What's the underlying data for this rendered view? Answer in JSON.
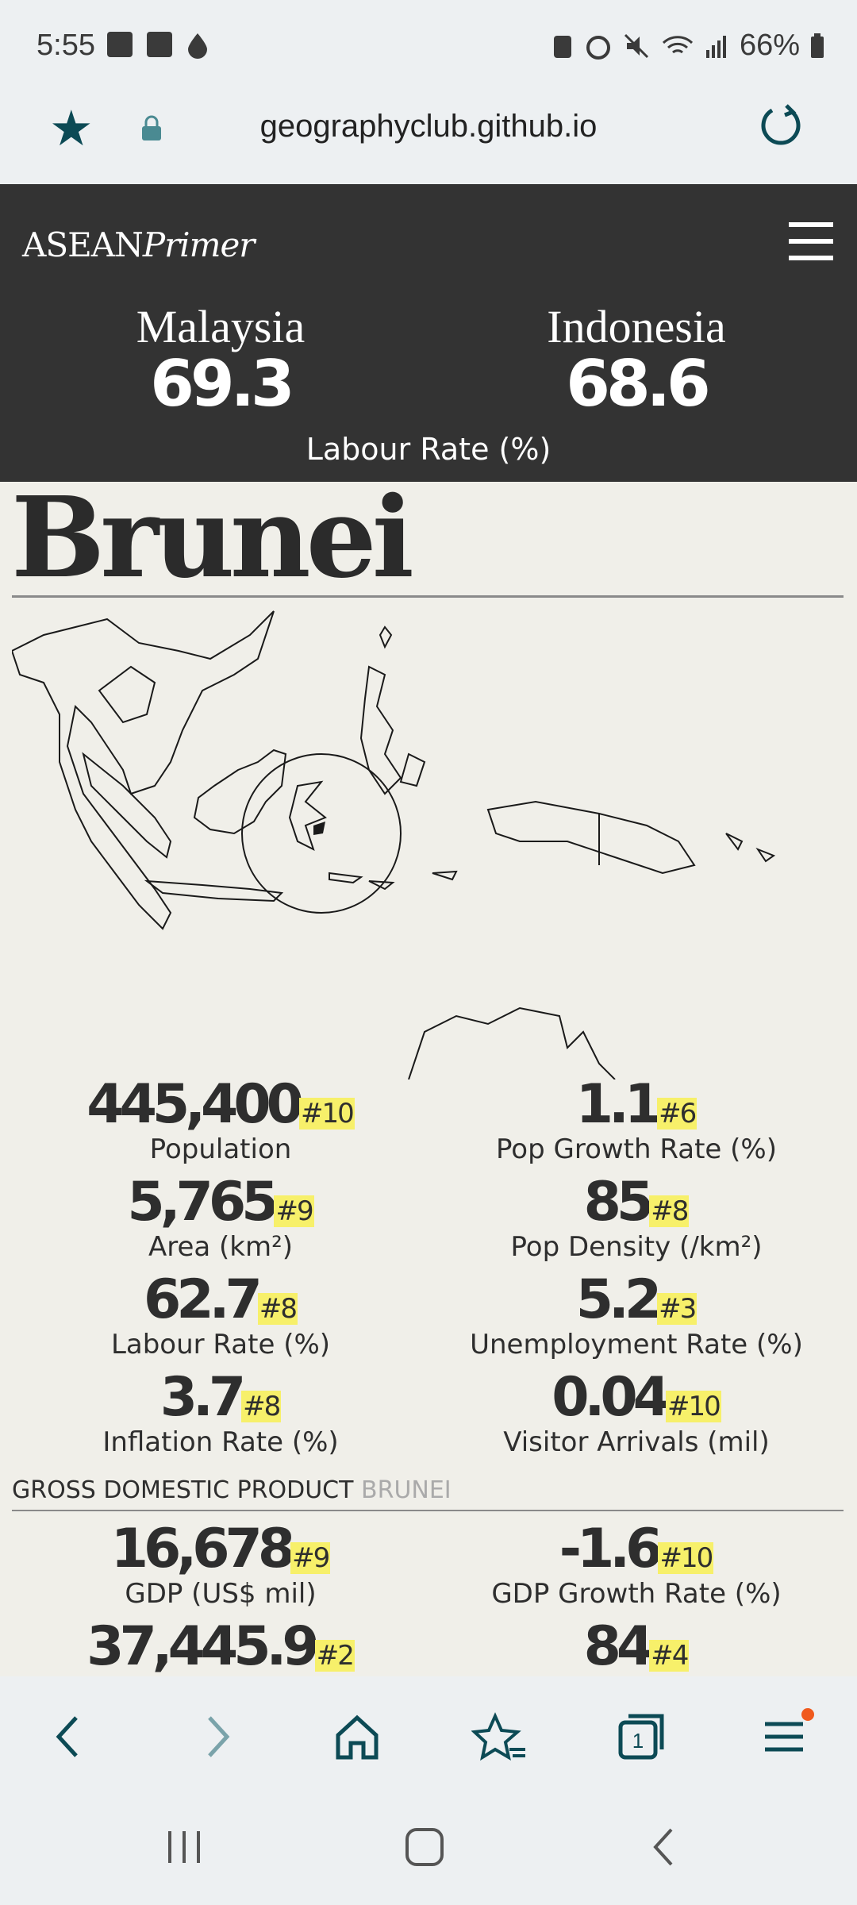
{
  "status": {
    "time": "5:55",
    "battery": "66%"
  },
  "browser": {
    "url": "geographyclub.github.io",
    "tab_count": "1"
  },
  "header": {
    "logo_left": "ASEAN",
    "logo_right": "Primer",
    "compare": [
      {
        "country": "Malaysia",
        "value": "69.3"
      },
      {
        "country": "Indonesia",
        "value": "68.6"
      }
    ],
    "compare_label": "Labour Rate (%)"
  },
  "country": {
    "name": "Brunei"
  },
  "stats": [
    {
      "value": "445,400",
      "rank": "#10",
      "label": "Population"
    },
    {
      "value": "1.1",
      "rank": "#6",
      "label": "Pop Growth Rate (%)"
    },
    {
      "value": "5,765",
      "rank": "#9",
      "label": "Area (km²)"
    },
    {
      "value": "85",
      "rank": "#8",
      "label": "Pop Density (/km²)"
    },
    {
      "value": "62.7",
      "rank": "#8",
      "label": "Labour Rate (%)"
    },
    {
      "value": "5.2",
      "rank": "#3",
      "label": "Unemployment Rate (%)"
    },
    {
      "value": "3.7",
      "rank": "#8",
      "label": "Inflation Rate (%)"
    },
    {
      "value": "0.04",
      "rank": "#10",
      "label": "Visitor Arrivals (mil)"
    }
  ],
  "gdp_section": {
    "heading": "GROSS DOMESTIC PRODUCT",
    "heading_sub": "BRUNEI",
    "stats": [
      {
        "value": "16,678",
        "rank": "#9",
        "label": "GDP (US$ mil)"
      },
      {
        "value": "-1.6",
        "rank": "#10",
        "label": "GDP Growth Rate (%)"
      },
      {
        "value": "37,445.9",
        "rank": "#2",
        "label": ""
      },
      {
        "value": "84",
        "rank": "#4",
        "label": ""
      }
    ]
  },
  "colors": {
    "header_bg": "#333333",
    "page_bg": "#f0efe9",
    "rank_highlight": "#f7f06a",
    "accent": "#0c4a55"
  }
}
